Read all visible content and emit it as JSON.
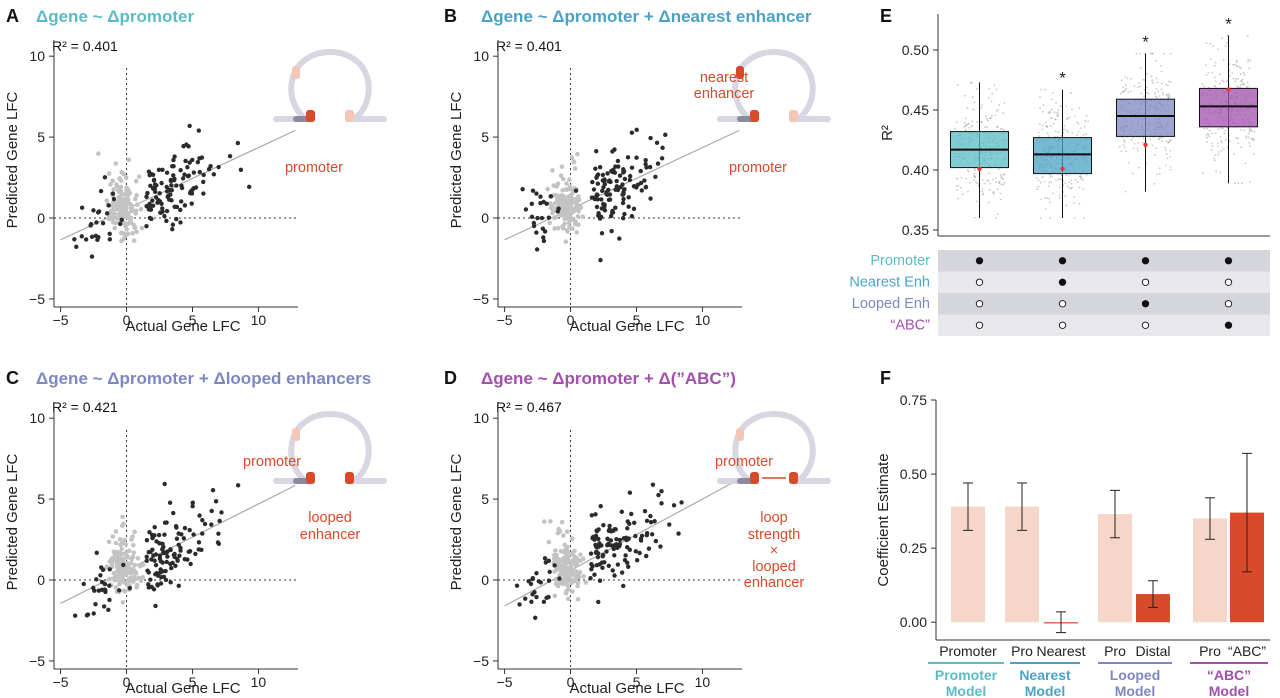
{
  "colors": {
    "teal": "#5bbcc6",
    "blue": "#4aa3c6",
    "periwinkle": "#7d87c2",
    "purple": "#a24fae",
    "orange": "#d84a2a",
    "light_orange": "#f5d6c8",
    "dark_point": "#2b2b2b",
    "light_point": "#c3c3c3"
  },
  "chart_data": [
    {
      "panel": "A",
      "type": "scatter",
      "title": "Δgene ~ Δpromoter",
      "title_color": "#5bbcc6",
      "xlabel": "Actual Gene LFC",
      "ylabel": "Predicted Gene LFC",
      "r2_label": "R² = 0.401",
      "xlim": [
        -5.5,
        13
      ],
      "ylim": [
        -5.5,
        11
      ],
      "xticks": [
        -5,
        0,
        5,
        10
      ],
      "yticks": [
        -5,
        0,
        5,
        10
      ],
      "fit": {
        "slope": 0.38,
        "intercept": 0.55
      },
      "annotations": [
        "promoter"
      ],
      "schematic_marks": [
        "promoter"
      ]
    },
    {
      "panel": "B",
      "type": "scatter",
      "title": "Δgene ~ Δpromoter + Δnearest enhancer",
      "title_color": "#4aa3c6",
      "xlabel": "Actual Gene LFC",
      "ylabel": "Predicted Gene LFC",
      "r2_label": "R² = 0.401",
      "xlim": [
        -5.5,
        13
      ],
      "ylim": [
        -5.5,
        11
      ],
      "xticks": [
        -5,
        0,
        5,
        10
      ],
      "yticks": [
        -5,
        0,
        5,
        10
      ],
      "fit": {
        "slope": 0.38,
        "intercept": 0.55
      },
      "annotations": [
        "nearest",
        "enhancer",
        "promoter"
      ],
      "schematic_marks": [
        "promoter",
        "nearest"
      ]
    },
    {
      "panel": "C",
      "type": "scatter",
      "title": "Δgene ~ Δpromoter + Δlooped enhancers",
      "title_color": "#7d87c2",
      "xlabel": "Actual Gene LFC",
      "ylabel": "Predicted Gene LFC",
      "r2_label": "R² = 0.421",
      "xlim": [
        -5.5,
        13
      ],
      "ylim": [
        -5.5,
        11
      ],
      "xticks": [
        -5,
        0,
        5,
        10
      ],
      "yticks": [
        -5,
        0,
        5,
        10
      ],
      "fit": {
        "slope": 0.41,
        "intercept": 0.6
      },
      "annotations": [
        "promoter",
        "looped",
        "enhancer"
      ],
      "schematic_marks": [
        "promoter",
        "looped"
      ]
    },
    {
      "panel": "D",
      "type": "scatter",
      "title": "Δgene ~ Δpromoter + Δ(”ABC”)",
      "title_color": "#a24fae",
      "xlabel": "Actual Gene LFC",
      "ylabel": "Predicted Gene LFC",
      "r2_label": "R² = 0.467",
      "xlim": [
        -5.5,
        13
      ],
      "ylim": [
        -5.5,
        11
      ],
      "xticks": [
        -5,
        0,
        5,
        10
      ],
      "yticks": [
        -5,
        0,
        5,
        10
      ],
      "fit": {
        "slope": 0.44,
        "intercept": 0.6
      },
      "annotations": [
        "promoter",
        "loop",
        "strength",
        "×",
        "looped",
        "enhancer"
      ],
      "schematic_marks": [
        "promoter",
        "looped",
        "arrow"
      ]
    },
    {
      "panel": "E",
      "type": "box",
      "ylabel": "R²",
      "ylim": [
        0.345,
        0.53
      ],
      "yticks": [
        0.35,
        0.4,
        0.45,
        0.5
      ],
      "ytick_labels": [
        "0.35",
        "0.40",
        "0.45",
        "0.50"
      ],
      "boxes": [
        {
          "q1": 0.402,
          "median": 0.417,
          "q3": 0.432,
          "whisker_low": 0.36,
          "whisker_high": 0.473,
          "point": 0.401,
          "star": false,
          "color": "#5bbcc6"
        },
        {
          "q1": 0.397,
          "median": 0.413,
          "q3": 0.427,
          "whisker_low": 0.36,
          "whisker_high": 0.467,
          "point": 0.401,
          "star": true,
          "color": "#4aa3c6"
        },
        {
          "q1": 0.428,
          "median": 0.445,
          "q3": 0.459,
          "whisker_low": 0.382,
          "whisker_high": 0.497,
          "point": 0.421,
          "star": true,
          "color": "#7d87c2"
        },
        {
          "q1": 0.436,
          "median": 0.453,
          "q3": 0.468,
          "whisker_low": 0.389,
          "whisker_high": 0.512,
          "point": 0.467,
          "star": true,
          "color": "#a24fae"
        }
      ],
      "star_label": "*",
      "features": [
        {
          "label": "Promoter",
          "color": "#5bbcc6",
          "included": [
            true,
            true,
            true,
            true
          ]
        },
        {
          "label": "Nearest Enh",
          "color": "#4aa3c6",
          "included": [
            false,
            true,
            false,
            false
          ]
        },
        {
          "label": "Looped Enh",
          "color": "#7d87c2",
          "included": [
            false,
            false,
            true,
            false
          ]
        },
        {
          "label": "“ABC”",
          "color": "#a24fae",
          "included": [
            false,
            false,
            false,
            true
          ]
        }
      ]
    },
    {
      "panel": "F",
      "type": "bar",
      "ylabel": "Coefficient Estimate",
      "ylim": [
        -0.06,
        0.75
      ],
      "yticks": [
        0.0,
        0.25,
        0.5,
        0.75
      ],
      "ytick_labels": [
        "0.00",
        "0.25",
        "0.50",
        "0.75"
      ],
      "bars": [
        {
          "label": "Promoter",
          "value": 0.39,
          "low": 0.31,
          "high": 0.47,
          "kind": "promoter",
          "group": 0
        },
        {
          "label": "Pro",
          "value": 0.39,
          "low": 0.31,
          "high": 0.47,
          "kind": "promoter",
          "group": 1
        },
        {
          "label": "Nearest",
          "value": 0.0,
          "low": -0.035,
          "high": 0.035,
          "kind": "enhancer",
          "group": 1
        },
        {
          "label": "Pro",
          "value": 0.365,
          "low": 0.285,
          "high": 0.445,
          "kind": "promoter",
          "group": 2
        },
        {
          "label": "Distal",
          "value": 0.095,
          "low": 0.05,
          "high": 0.14,
          "kind": "enhancer",
          "group": 2
        },
        {
          "label": "Pro",
          "value": 0.35,
          "low": 0.28,
          "high": 0.42,
          "kind": "promoter",
          "group": 3
        },
        {
          "label": "“ABC”",
          "value": 0.37,
          "low": 0.17,
          "high": 0.57,
          "kind": "enhancer",
          "group": 3
        }
      ],
      "models": [
        {
          "line1": "Promoter",
          "line2": "Model",
          "color": "#5bbcc6"
        },
        {
          "line1": "Nearest",
          "line2": "Model",
          "color": "#4aa3c6"
        },
        {
          "line1": "Looped",
          "line2": "Model",
          "color": "#7d87c2"
        },
        {
          "line1": "“ABC”",
          "line2": "Model",
          "color": "#a24fae"
        }
      ]
    }
  ],
  "panel_labels": [
    "A",
    "B",
    "C",
    "D",
    "E",
    "F"
  ]
}
